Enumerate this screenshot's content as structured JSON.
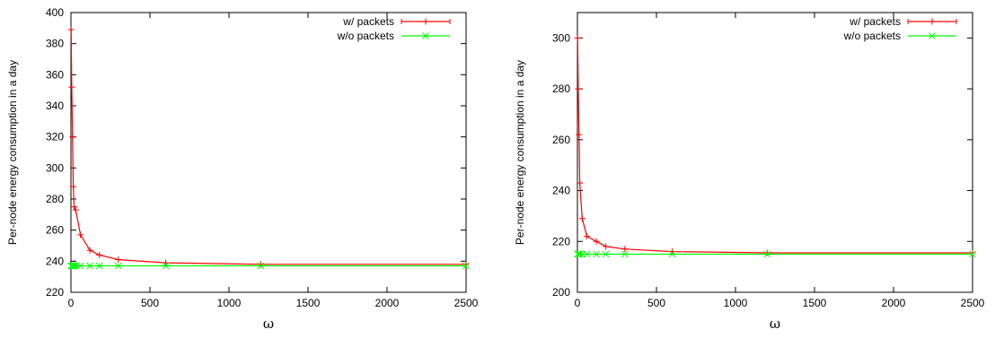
{
  "chart_data": [
    {
      "type": "line",
      "title": "",
      "xlabel": "ω",
      "ylabel": "Per-node energy consumption in a day",
      "xlim": [
        0,
        2500
      ],
      "ylim": [
        220,
        400
      ],
      "xticks": [
        0,
        500,
        1000,
        1500,
        2000,
        2500
      ],
      "yticks": [
        220,
        240,
        260,
        280,
        300,
        320,
        340,
        360,
        380,
        400
      ],
      "grid": false,
      "legend_position": "top-right",
      "series": [
        {
          "name": "w/ packets",
          "color": "#ff0000",
          "marker": "plus",
          "x": [
            1,
            5,
            10,
            15,
            20,
            30,
            60,
            120,
            180,
            300,
            600,
            1200,
            2500
          ],
          "y": [
            389,
            352,
            320,
            288,
            275,
            273,
            257,
            247,
            244,
            241,
            239,
            238,
            238
          ]
        },
        {
          "name": "w/o packets",
          "color": "#00ff00",
          "marker": "x",
          "x": [
            1,
            5,
            10,
            15,
            20,
            30,
            60,
            120,
            180,
            300,
            600,
            1200,
            2500
          ],
          "y": [
            237,
            237,
            237,
            237,
            237,
            237,
            237,
            237,
            237,
            237,
            237,
            237,
            237
          ]
        }
      ]
    },
    {
      "type": "line",
      "title": "",
      "xlabel": "ω",
      "ylabel": "Per-node energy consumption in a day",
      "xlim": [
        0,
        2500
      ],
      "ylim": [
        200,
        310
      ],
      "xticks": [
        0,
        500,
        1000,
        1500,
        2000,
        2500
      ],
      "yticks": [
        200,
        220,
        240,
        260,
        280,
        300
      ],
      "grid": false,
      "legend_position": "top-right",
      "series": [
        {
          "name": "w/ packets",
          "color": "#ff0000",
          "marker": "plus",
          "x": [
            1,
            5,
            10,
            15,
            30,
            60,
            120,
            180,
            300,
            600,
            1200,
            2500
          ],
          "y": [
            300,
            280,
            262,
            243,
            229,
            222,
            220,
            218,
            217,
            216,
            215.5,
            215.5
          ]
        },
        {
          "name": "w/o packets",
          "color": "#00ff00",
          "marker": "x",
          "x": [
            1,
            5,
            10,
            15,
            30,
            60,
            120,
            180,
            300,
            600,
            1200,
            2500
          ],
          "y": [
            215,
            215,
            215,
            215,
            215,
            215,
            215,
            215,
            215,
            215,
            215,
            215
          ]
        }
      ]
    }
  ]
}
